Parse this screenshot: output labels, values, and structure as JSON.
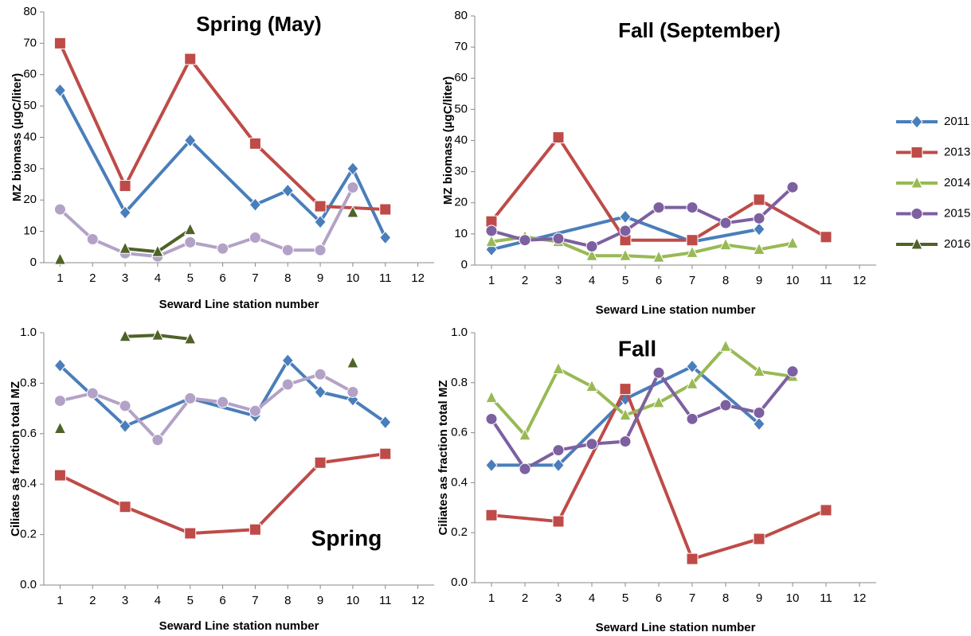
{
  "chart_data": [
    {
      "type": "line",
      "title": "Spring (May)",
      "xlabel": "Seward Line station number",
      "ylabel": "MZ biomass (µgC/liter)",
      "xlim": [
        0.5,
        12.5
      ],
      "xticks": [
        1,
        2,
        3,
        4,
        5,
        6,
        7,
        8,
        9,
        10,
        11,
        12
      ],
      "ylim": [
        0,
        80
      ],
      "yticks": [
        0,
        10,
        20,
        30,
        40,
        50,
        60,
        70,
        80
      ],
      "series": [
        {
          "color": "#4a7ebb",
          "marker": "diamond",
          "x": [
            1,
            3,
            5,
            7,
            8,
            9,
            10,
            11
          ],
          "values": [
            55,
            16,
            39,
            18.5,
            23,
            13,
            30,
            8
          ]
        },
        {
          "color": "#be4b48",
          "marker": "square",
          "x": [
            1,
            3,
            5,
            7,
            9,
            11
          ],
          "values": [
            70,
            24.5,
            65,
            38,
            18,
            17
          ]
        },
        {
          "color": "#b3a2c7",
          "marker": "circle",
          "x": [
            1,
            2,
            3,
            4,
            5,
            6,
            7,
            8,
            9,
            10
          ],
          "values": [
            17,
            7.5,
            3,
            2,
            6.5,
            4.5,
            8,
            4,
            4,
            24
          ]
        },
        {
          "color": "#4f6228",
          "marker": "triangle",
          "x": [
            1,
            2,
            3,
            4,
            5,
            6,
            10
          ],
          "values": [
            1,
            null,
            4.5,
            3.5,
            10.5,
            null,
            16
          ]
        }
      ]
    },
    {
      "type": "line",
      "title": "Fall (September)",
      "xlabel": "Seward Line station number",
      "ylabel": "MZ biomass (µgC/liter)",
      "xlim": [
        0.5,
        12.5
      ],
      "xticks": [
        1,
        2,
        3,
        4,
        5,
        6,
        7,
        8,
        9,
        10,
        11,
        12
      ],
      "ylim": [
        0,
        80
      ],
      "yticks": [
        0,
        10,
        20,
        30,
        40,
        50,
        60,
        70,
        80
      ],
      "legend": "right",
      "series": [
        {
          "name": "2011",
          "color": "#4a7ebb",
          "marker": "diamond",
          "x": [
            1,
            5,
            7,
            9
          ],
          "values": [
            5,
            15.5,
            7.5,
            11.5
          ]
        },
        {
          "name": "2013",
          "color": "#be4b48",
          "marker": "square",
          "x": [
            1,
            3,
            5,
            7,
            9,
            11
          ],
          "values": [
            14,
            41,
            8,
            8,
            21,
            9
          ]
        },
        {
          "name": "2014",
          "color": "#98b954",
          "marker": "triangle",
          "x": [
            1,
            2,
            3,
            4,
            5,
            6,
            7,
            8,
            9,
            10
          ],
          "values": [
            7.5,
            9,
            7.5,
            3,
            3,
            2.5,
            4,
            6.5,
            5,
            7
          ]
        },
        {
          "name": "2015",
          "color": "#7d60a0",
          "marker": "circle",
          "x": [
            1,
            2,
            3,
            4,
            5,
            6,
            7,
            8,
            9,
            10
          ],
          "values": [
            11,
            8,
            8.5,
            6,
            11,
            18.5,
            18.5,
            13.5,
            15,
            25
          ]
        },
        {
          "name": "2016",
          "color": "#4f6228",
          "marker": "triangle",
          "x": [],
          "values": []
        }
      ]
    },
    {
      "type": "line",
      "title": "Spring",
      "xlabel": "Seward Line station number",
      "ylabel": "Ciliates as fraction total MZ",
      "xlim": [
        0.5,
        12.5
      ],
      "xticks": [
        1,
        2,
        3,
        4,
        5,
        6,
        7,
        8,
        9,
        10,
        11,
        12
      ],
      "ylim": [
        0,
        1
      ],
      "yticks": [
        {
          "value": 0,
          "label": "0.0"
        },
        {
          "value": 0.2,
          "label": "0.2"
        },
        {
          "value": 0.4,
          "label": "0.4"
        },
        {
          "value": 0.6,
          "label": "0.6"
        },
        {
          "value": 0.8,
          "label": "0.8"
        },
        {
          "value": 1,
          "label": "1.0"
        }
      ],
      "series": [
        {
          "color": "#4a7ebb",
          "marker": "diamond",
          "x": [
            1,
            3,
            5,
            7,
            8,
            9,
            10,
            11
          ],
          "values": [
            0.87,
            0.63,
            0.74,
            0.67,
            0.89,
            0.765,
            0.735,
            0.645
          ]
        },
        {
          "color": "#be4b48",
          "marker": "square",
          "x": [
            1,
            3,
            5,
            7,
            9,
            11
          ],
          "values": [
            0.435,
            0.31,
            0.205,
            0.22,
            0.485,
            0.52
          ]
        },
        {
          "color": "#b3a2c7",
          "marker": "circle",
          "x": [
            1,
            2,
            3,
            4,
            5,
            6,
            7,
            8,
            9,
            10
          ],
          "values": [
            0.73,
            0.76,
            0.71,
            0.575,
            0.74,
            0.725,
            0.69,
            0.795,
            0.835,
            0.765
          ]
        },
        {
          "color": "#4f6228",
          "marker": "triangle",
          "x": [
            1,
            2,
            3,
            4,
            5,
            6,
            10
          ],
          "values": [
            0.62,
            null,
            0.985,
            0.99,
            0.975,
            null,
            0.88
          ]
        }
      ]
    },
    {
      "type": "line",
      "title": "Fall",
      "xlabel": "Seward Line station number",
      "ylabel": "Ciliates as fraction total MZ",
      "xlim": [
        0.5,
        12.5
      ],
      "xticks": [
        1,
        2,
        3,
        4,
        5,
        6,
        7,
        8,
        9,
        10,
        11,
        12
      ],
      "ylim": [
        0,
        1
      ],
      "yticks": [
        {
          "value": 0,
          "label": "0.0"
        },
        {
          "value": 0.2,
          "label": "0.2"
        },
        {
          "value": 0.4,
          "label": "0.4"
        },
        {
          "value": 0.6,
          "label": "0.6"
        },
        {
          "value": 0.8,
          "label": "0.8"
        },
        {
          "value": 1,
          "label": "1.0"
        }
      ],
      "series": [
        {
          "color": "#4a7ebb",
          "marker": "diamond",
          "x": [
            1,
            3,
            5,
            7,
            9
          ],
          "values": [
            0.47,
            0.47,
            0.735,
            0.865,
            0.635
          ]
        },
        {
          "color": "#be4b48",
          "marker": "square",
          "x": [
            1,
            3,
            5,
            7,
            9,
            11
          ],
          "values": [
            0.27,
            0.245,
            0.775,
            0.095,
            0.175,
            0.29
          ]
        },
        {
          "color": "#98b954",
          "marker": "triangle",
          "x": [
            1,
            2,
            3,
            4,
            5,
            6,
            7,
            8,
            9,
            10
          ],
          "values": [
            0.74,
            0.59,
            0.855,
            0.785,
            0.67,
            0.72,
            0.795,
            0.945,
            0.845,
            0.825
          ]
        },
        {
          "color": "#7d60a0",
          "marker": "circle",
          "x": [
            1,
            2,
            3,
            4,
            5,
            6,
            7,
            8,
            9,
            10
          ],
          "values": [
            0.655,
            0.455,
            0.53,
            0.555,
            0.565,
            0.84,
            0.655,
            0.71,
            0.68,
            0.845
          ]
        }
      ]
    }
  ]
}
